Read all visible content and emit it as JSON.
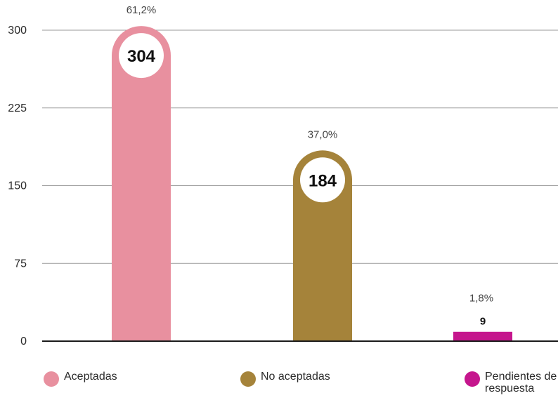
{
  "chart_data": {
    "type": "bar",
    "categories": [
      "Aceptadas",
      "No aceptadas",
      "Pendientes de respuesta"
    ],
    "values": [
      304,
      184,
      9
    ],
    "value_labels": [
      "304",
      "184",
      "9"
    ],
    "percent_labels": [
      "61,2%",
      "37,0%",
      "1,8%"
    ],
    "colors": [
      "#E8909F",
      "#A5833A",
      "#C5168D"
    ],
    "ylim": [
      0,
      300
    ],
    "yticks": [
      0,
      75,
      150,
      225,
      300
    ],
    "ytick_labels": [
      "0",
      "75",
      "150",
      "225",
      "300"
    ],
    "grid": true,
    "legend_position": "bottom",
    "title": "",
    "xlabel": "",
    "ylabel": ""
  }
}
